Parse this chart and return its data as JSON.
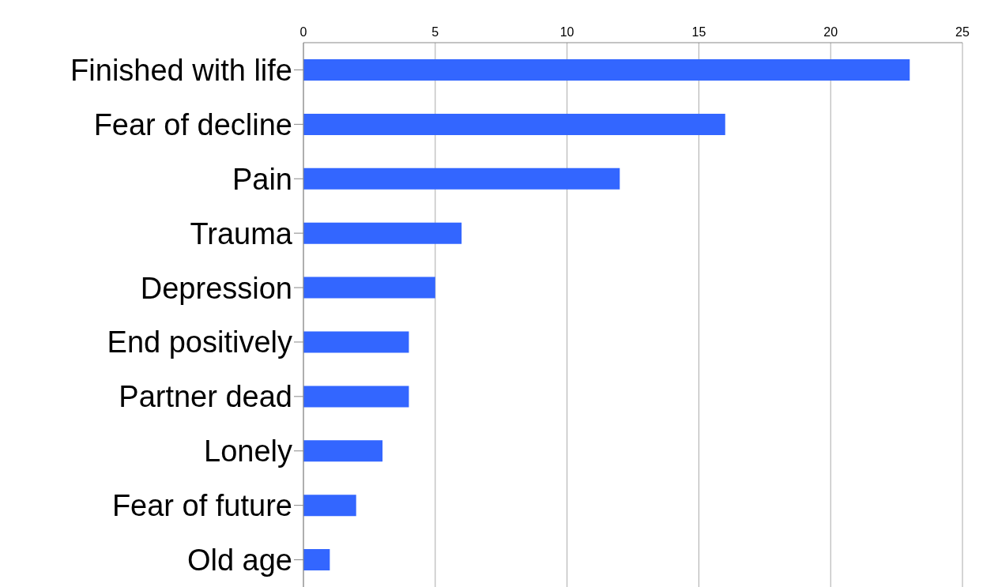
{
  "chart_data": {
    "type": "bar",
    "orientation": "horizontal",
    "categories": [
      "Finished with life",
      "Fear of decline",
      "Pain",
      "Trauma",
      "Depression",
      "End positively",
      "Partner dead",
      "Lonely",
      "Fear of future",
      "Old age"
    ],
    "values": [
      23,
      16,
      12,
      6,
      5,
      4,
      4,
      3,
      2,
      1
    ],
    "color": "#3366ff",
    "xlim": [
      0,
      25
    ],
    "xticks": [
      0,
      5,
      10,
      15,
      20,
      25
    ],
    "grid": "x",
    "legend": false
  }
}
